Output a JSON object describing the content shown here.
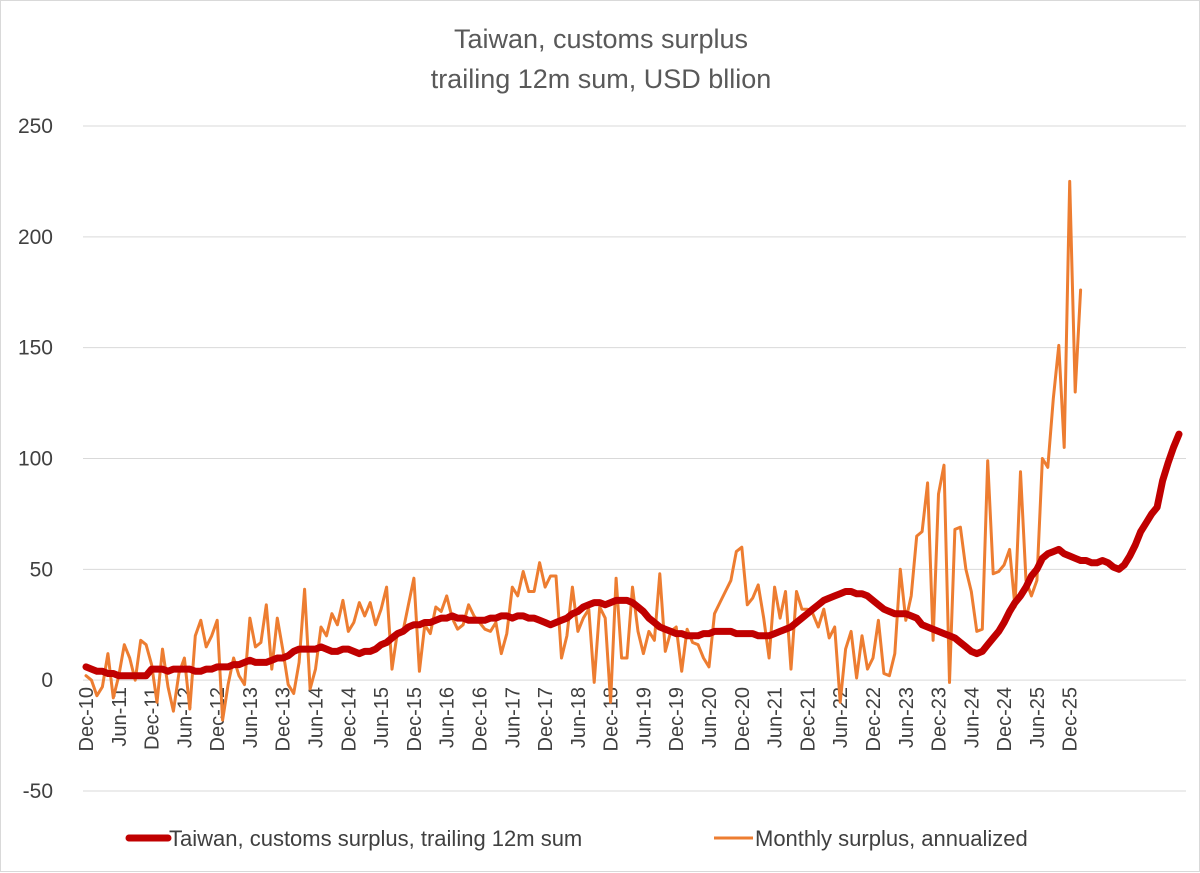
{
  "chart_data": {
    "type": "line",
    "title": "Taiwan, customs surplus",
    "subtitle": "trailing 12m sum, USD bllion",
    "xlabel": "",
    "ylabel": "",
    "ylim": [
      -50,
      250
    ],
    "yticks": [
      250,
      200,
      150,
      100,
      50,
      0,
      -50
    ],
    "x_tick_labels": [
      "Dec-10",
      "Jun-11",
      "Dec-11",
      "Jun-12",
      "Dec-12",
      "Jun-13",
      "Dec-13",
      "Jun-14",
      "Dec-14",
      "Jun-15",
      "Dec-15",
      "Jun-16",
      "Dec-16",
      "Jun-17",
      "Dec-17",
      "Jun-18",
      "Dec-18",
      "Jun-19",
      "Dec-19",
      "Jun-20",
      "Dec-20",
      "Jun-21",
      "Dec-21",
      "Jun-22",
      "Dec-22",
      "Jun-23",
      "Dec-23",
      "Jun-24",
      "Dec-24",
      "Jun-25",
      "Dec-25"
    ],
    "x_start": "Dec-10",
    "x_end": "Dec-25",
    "grid": true,
    "legend_position": "bottom",
    "series": [
      {
        "name": "Taiwan, customs surplus, trailing 12m sum",
        "color": "#c00000",
        "line_width": 7,
        "values": [
          6,
          5,
          4,
          4,
          3,
          3,
          2,
          2,
          2,
          2,
          2,
          2,
          5,
          5,
          5,
          4,
          5,
          5,
          5,
          5,
          4,
          4,
          5,
          5,
          6,
          6,
          6,
          7,
          7,
          8,
          9,
          8,
          8,
          8,
          9,
          10,
          10,
          11,
          13,
          14,
          14,
          14,
          14,
          15,
          14,
          13,
          13,
          14,
          14,
          13,
          12,
          13,
          13,
          14,
          16,
          17,
          19,
          21,
          22,
          24,
          25,
          25,
          26,
          26,
          27,
          28,
          28,
          29,
          28,
          28,
          27,
          27,
          27,
          27,
          28,
          28,
          29,
          29,
          28,
          29,
          29,
          28,
          28,
          27,
          26,
          25,
          26,
          27,
          28,
          30,
          31,
          33,
          34,
          35,
          35,
          34,
          35,
          36,
          36,
          36,
          35,
          33,
          31,
          28,
          26,
          24,
          23,
          22,
          21,
          21,
          20,
          20,
          20,
          21,
          21,
          22,
          22,
          22,
          22,
          21,
          21,
          21,
          21,
          20,
          20,
          20,
          21,
          22,
          23,
          24,
          26,
          28,
          30,
          32,
          34,
          36,
          37,
          38,
          39,
          40,
          40,
          39,
          39,
          38,
          36,
          34,
          32,
          31,
          30,
          30,
          30,
          29,
          28,
          25,
          24,
          23,
          22,
          21,
          20,
          19,
          17,
          15,
          13,
          12,
          13,
          16,
          19,
          22,
          26,
          31,
          35,
          38,
          42,
          47,
          50,
          55,
          57,
          58,
          59,
          57,
          56,
          55,
          54,
          54,
          53,
          53,
          54,
          53,
          51,
          50,
          52,
          56,
          61,
          67,
          71,
          75,
          78,
          90,
          98,
          105,
          111
        ]
      },
      {
        "name": "Monthly surplus, annualized",
        "color": "#ed7d31",
        "line_width": 3,
        "values": [
          2,
          0,
          -7,
          -3,
          12,
          -8,
          2,
          16,
          10,
          0,
          18,
          16,
          7,
          -10,
          14,
          -3,
          -14,
          3,
          10,
          -13,
          20,
          27,
          15,
          20,
          27,
          -18,
          -2,
          10,
          2,
          -2,
          28,
          15,
          17,
          34,
          5,
          28,
          14,
          -2,
          -6,
          8,
          41,
          -4,
          5,
          24,
          20,
          30,
          25,
          36,
          22,
          26,
          35,
          29,
          35,
          25,
          32,
          42,
          5,
          22,
          22,
          34,
          46,
          4,
          25,
          21,
          33,
          31,
          38,
          28,
          23,
          25,
          34,
          29,
          26,
          23,
          22,
          26,
          12,
          21,
          42,
          38,
          49,
          40,
          40,
          53,
          42,
          47,
          47,
          10,
          20,
          42,
          22,
          28,
          32,
          -1,
          33,
          28,
          -10,
          46,
          10,
          10,
          42,
          22,
          12,
          22,
          18,
          48,
          13,
          22,
          24,
          4,
          23,
          17,
          16,
          10,
          6,
          30,
          35,
          40,
          45,
          58,
          60,
          34,
          37,
          43,
          28,
          10,
          42,
          28,
          40,
          5,
          40,
          32,
          32,
          30,
          24,
          32,
          19,
          24,
          -10,
          14,
          22,
          1,
          20,
          5,
          10,
          27,
          3,
          2,
          12,
          50,
          27,
          38,
          65,
          67,
          89,
          18,
          84,
          97,
          -1,
          68,
          69,
          50,
          40,
          22,
          23,
          99,
          48,
          49,
          52,
          59,
          33,
          94,
          45,
          38,
          45,
          100,
          96,
          127,
          151,
          105,
          225,
          130,
          176
        ]
      }
    ]
  }
}
